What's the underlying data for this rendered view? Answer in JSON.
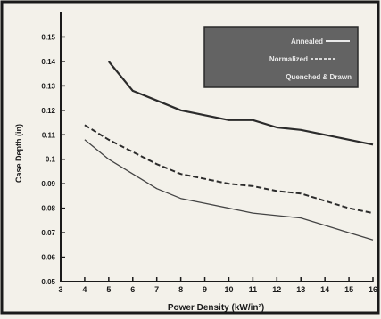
{
  "chart_data": {
    "type": "line",
    "xlabel": "Power Density (kW/in²)",
    "ylabel": "Case Depth (in)",
    "xlim": [
      3,
      16
    ],
    "ylim": [
      0.05,
      0.16
    ],
    "x_ticks": [
      "3",
      "4",
      "5",
      "6",
      "7",
      "8",
      "9",
      "10",
      "11",
      "12",
      "13",
      "14",
      "15",
      "16"
    ],
    "y_ticks": [
      "0.05",
      "0.06",
      "0.07",
      "0.08",
      "0.09",
      "0.1",
      "0.11",
      "0.12",
      "0.13",
      "0.14",
      "0.15"
    ],
    "legend": {
      "placement": "top-right",
      "entries": [
        "Annealed",
        "Normalized",
        "Quenched & Drawn"
      ]
    },
    "series": [
      {
        "name": "Annealed",
        "style": "solid-thick",
        "color": "#2b2b2b",
        "x": [
          5,
          6,
          7,
          8,
          9,
          10,
          11,
          12,
          13,
          14,
          15,
          16
        ],
        "y": [
          0.14,
          0.128,
          0.124,
          0.12,
          0.118,
          0.116,
          0.116,
          0.113,
          0.112,
          0.11,
          0.108,
          0.106
        ]
      },
      {
        "name": "Normalized",
        "style": "dashed",
        "color": "#2b2b2b",
        "x": [
          4,
          5,
          6,
          7,
          8,
          9,
          10,
          11,
          12,
          13,
          14,
          15,
          16
        ],
        "y": [
          0.114,
          0.108,
          0.103,
          0.098,
          0.094,
          0.092,
          0.09,
          0.089,
          0.087,
          0.086,
          0.083,
          0.08,
          0.078
        ]
      },
      {
        "name": "Quenched & Drawn",
        "style": "solid-thin",
        "color": "#444444",
        "x": [
          4,
          5,
          6,
          7,
          8,
          9,
          10,
          11,
          12,
          13,
          14,
          15,
          16
        ],
        "y": [
          0.108,
          0.1,
          0.094,
          0.088,
          0.084,
          0.082,
          0.08,
          0.078,
          0.077,
          0.076,
          0.073,
          0.07,
          0.067
        ]
      }
    ],
    "grid": false,
    "colors": {
      "legend_box": "#636363",
      "legend_text": "#e9e9e9",
      "axis": "#1a1a1a"
    }
  }
}
